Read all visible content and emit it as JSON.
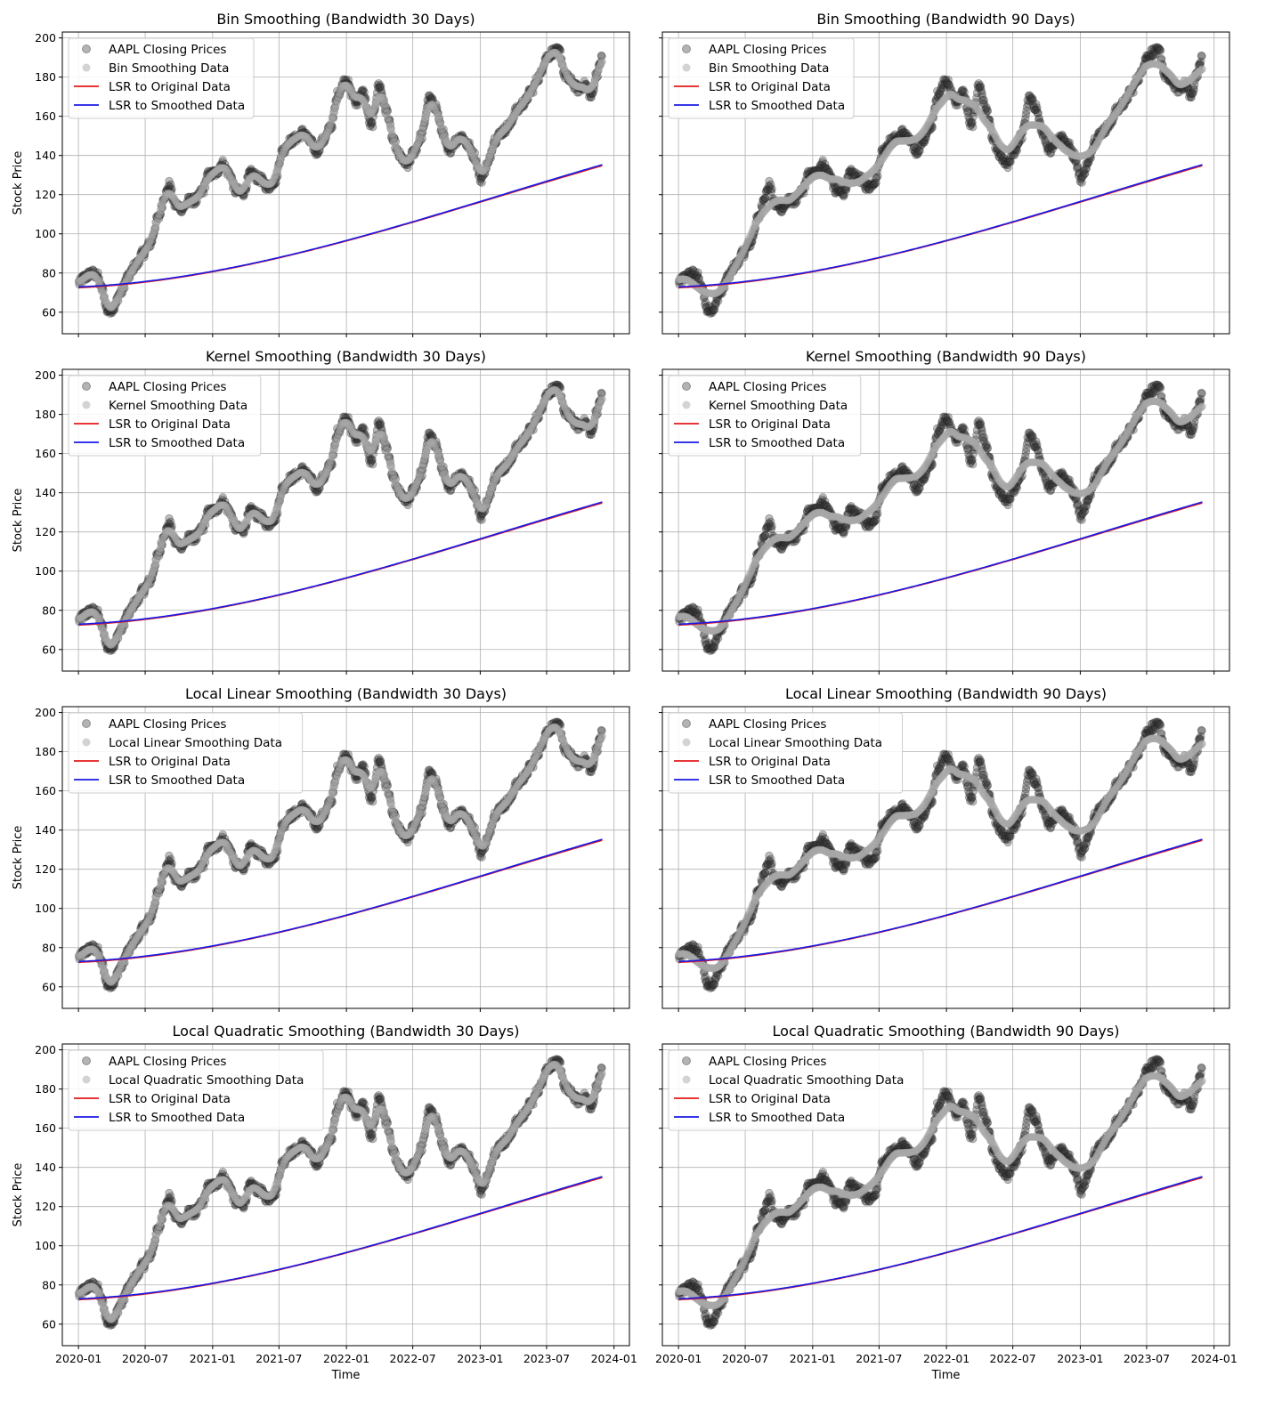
{
  "figure": {
    "x_axis_label": "Time",
    "y_axis_label": "Stock Price",
    "x_tick_labels": [
      "2020-01",
      "2020-07",
      "2021-01",
      "2021-07",
      "2022-01",
      "2022-07",
      "2023-01",
      "2023-07",
      "2024-01"
    ],
    "y_tick_labels": [
      "60",
      "80",
      "100",
      "120",
      "140",
      "160",
      "180",
      "200"
    ]
  },
  "colors": {
    "closing_prices": "#3a3a3a",
    "smoothed": "#a8a8a8",
    "lsr_original": "#e41a1c",
    "lsr_smoothed": "#1a1ae6",
    "grid": "#b0b0b0"
  },
  "chart_data": [
    {
      "type": "line",
      "title": "Bin Smoothing (Bandwidth 30 Days)",
      "legend": [
        "AAPL Closing Prices",
        "Bin Smoothing Data",
        "LSR to Original Data",
        "LSR to Smoothed Data"
      ],
      "bandwidth_days": 30,
      "xlim": [
        "2019-11-18",
        "2024-02-12"
      ],
      "ylim": [
        49,
        203
      ],
      "legend_position": "upper-left",
      "grid": true
    },
    {
      "type": "line",
      "title": "Bin Smoothing (Bandwidth 90 Days)",
      "legend": [
        "AAPL Closing Prices",
        "Bin Smoothing Data",
        "LSR to Original Data",
        "LSR to Smoothed Data"
      ],
      "bandwidth_days": 90,
      "xlim": [
        "2019-11-18",
        "2024-02-12"
      ],
      "ylim": [
        49,
        203
      ],
      "legend_position": "upper-left",
      "grid": true
    },
    {
      "type": "line",
      "title": "Kernel Smoothing (Bandwidth 30 Days)",
      "legend": [
        "AAPL Closing Prices",
        "Kernel Smoothing Data",
        "LSR to Original Data",
        "LSR to Smoothed Data"
      ],
      "bandwidth_days": 30,
      "xlim": [
        "2019-11-18",
        "2024-02-12"
      ],
      "ylim": [
        49,
        203
      ],
      "legend_position": "upper-left",
      "grid": true
    },
    {
      "type": "line",
      "title": "Kernel Smoothing (Bandwidth 90 Days)",
      "legend": [
        "AAPL Closing Prices",
        "Kernel Smoothing Data",
        "LSR to Original Data",
        "LSR to Smoothed Data"
      ],
      "bandwidth_days": 90,
      "xlim": [
        "2019-11-18",
        "2024-02-12"
      ],
      "ylim": [
        49,
        203
      ],
      "legend_position": "upper-left",
      "grid": true
    },
    {
      "type": "line",
      "title": "Local Linear Smoothing (Bandwidth 30 Days)",
      "legend": [
        "AAPL Closing Prices",
        "Local Linear Smoothing Data",
        "LSR to Original Data",
        "LSR to Smoothed Data"
      ],
      "bandwidth_days": 30,
      "xlim": [
        "2019-11-18",
        "2024-02-12"
      ],
      "ylim": [
        49,
        203
      ],
      "legend_position": "upper-left",
      "grid": true
    },
    {
      "type": "line",
      "title": "Local Linear Smoothing (Bandwidth 90 Days)",
      "legend": [
        "AAPL Closing Prices",
        "Local Linear Smoothing Data",
        "LSR to Original Data",
        "LSR to Smoothed Data"
      ],
      "bandwidth_days": 90,
      "xlim": [
        "2019-11-18",
        "2024-02-12"
      ],
      "ylim": [
        49,
        203
      ],
      "legend_position": "upper-left",
      "grid": true
    },
    {
      "type": "line",
      "title": "Local Quadratic Smoothing (Bandwidth 30 Days)",
      "legend": [
        "AAPL Closing Prices",
        "Local Quadratic Smoothing Data",
        "LSR to Original Data",
        "LSR to Smoothed Data"
      ],
      "bandwidth_days": 30,
      "xlim": [
        "2019-11-18",
        "2024-02-12"
      ],
      "ylim": [
        49,
        203
      ],
      "legend_position": "upper-left",
      "grid": true
    },
    {
      "type": "line",
      "title": "Local Quadratic Smoothing (Bandwidth 90 Days)",
      "legend": [
        "AAPL Closing Prices",
        "Local Quadratic Smoothing Data",
        "LSR to Original Data",
        "LSR to Smoothed Data"
      ],
      "bandwidth_days": 90,
      "xlim": [
        "2019-11-18",
        "2024-02-12"
      ],
      "ylim": [
        49,
        203
      ],
      "legend_position": "upper-left",
      "grid": true
    }
  ],
  "price_series": {
    "dates": [
      "2020-01-02",
      "2020-01-20",
      "2020-02-05",
      "2020-02-20",
      "2020-03-05",
      "2020-03-20",
      "2020-04-05",
      "2020-04-25",
      "2020-05-15",
      "2020-06-05",
      "2020-06-25",
      "2020-07-15",
      "2020-08-05",
      "2020-08-25",
      "2020-09-05",
      "2020-09-20",
      "2020-10-10",
      "2020-10-30",
      "2020-11-15",
      "2020-12-05",
      "2020-12-20",
      "2021-01-10",
      "2021-01-27",
      "2021-02-15",
      "2021-03-05",
      "2021-03-25",
      "2021-04-15",
      "2021-05-10",
      "2021-06-01",
      "2021-06-20",
      "2021-07-10",
      "2021-07-30",
      "2021-08-20",
      "2021-09-05",
      "2021-09-25",
      "2021-10-10",
      "2021-11-01",
      "2021-11-20",
      "2021-12-10",
      "2021-12-31",
      "2022-01-15",
      "2022-01-27",
      "2022-02-15",
      "2022-03-10",
      "2022-03-31",
      "2022-04-20",
      "2022-05-10",
      "2022-05-25",
      "2022-06-15",
      "2022-07-05",
      "2022-07-25",
      "2022-08-15",
      "2022-09-01",
      "2022-09-20",
      "2022-10-05",
      "2022-10-25",
      "2022-11-10",
      "2022-11-30",
      "2022-12-15",
      "2023-01-03",
      "2023-01-20",
      "2023-02-10",
      "2023-03-01",
      "2023-03-20",
      "2023-04-10",
      "2023-05-01",
      "2023-05-20",
      "2023-06-10",
      "2023-06-30",
      "2023-07-20",
      "2023-08-05",
      "2023-08-20",
      "2023-09-05",
      "2023-09-25",
      "2023-10-15",
      "2023-10-31",
      "2023-11-15",
      "2023-11-30"
    ],
    "closing": [
      75,
      78,
      80,
      79,
      72,
      61,
      62,
      70,
      78,
      84,
      90,
      95,
      108,
      120,
      125,
      115,
      113,
      117,
      117,
      122,
      130,
      131,
      136,
      131,
      122,
      121,
      131,
      128,
      124,
      127,
      142,
      147,
      149,
      152,
      147,
      142,
      148,
      155,
      172,
      179,
      172,
      167,
      172,
      155,
      176,
      163,
      147,
      140,
      135,
      142,
      150,
      169,
      165,
      152,
      142,
      147,
      150,
      145,
      140,
      128,
      135,
      148,
      152,
      155,
      163,
      167,
      173,
      180,
      190,
      193,
      193,
      181,
      178,
      174,
      176,
      170,
      182,
      190
    ],
    "fit_original": {
      "a": 72.5,
      "b": 12.43,
      "c": 85.13,
      "d": -35.25
    },
    "fit_smoothed": {
      "a": 72.9,
      "b": 11.58,
      "c": 86.07,
      "d": -35.25
    }
  }
}
